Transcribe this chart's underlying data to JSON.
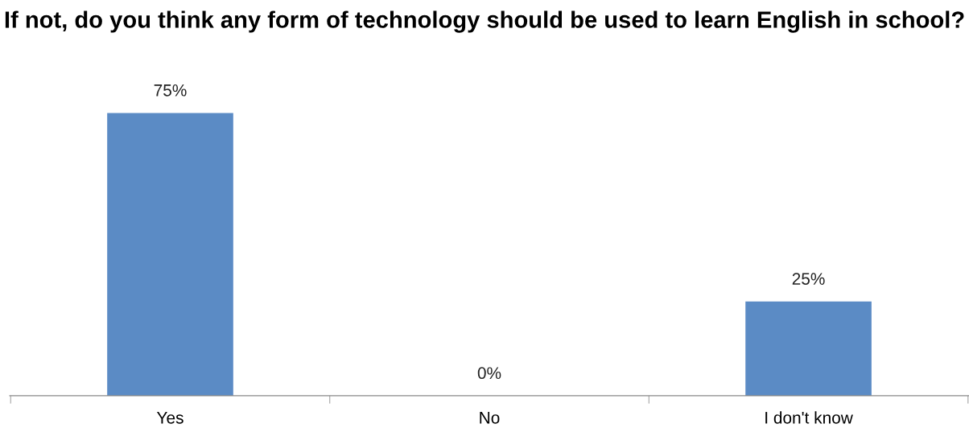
{
  "chart_data": {
    "type": "bar",
    "title": "If not, do you think any form of technology should be used to learn English in school?",
    "categories": [
      "Yes",
      "No",
      "I don't know"
    ],
    "values": [
      75,
      0,
      25
    ],
    "value_labels": [
      "75%",
      "0%",
      "25%"
    ],
    "color": "#5b8bc5",
    "grid": false,
    "legend": false
  }
}
